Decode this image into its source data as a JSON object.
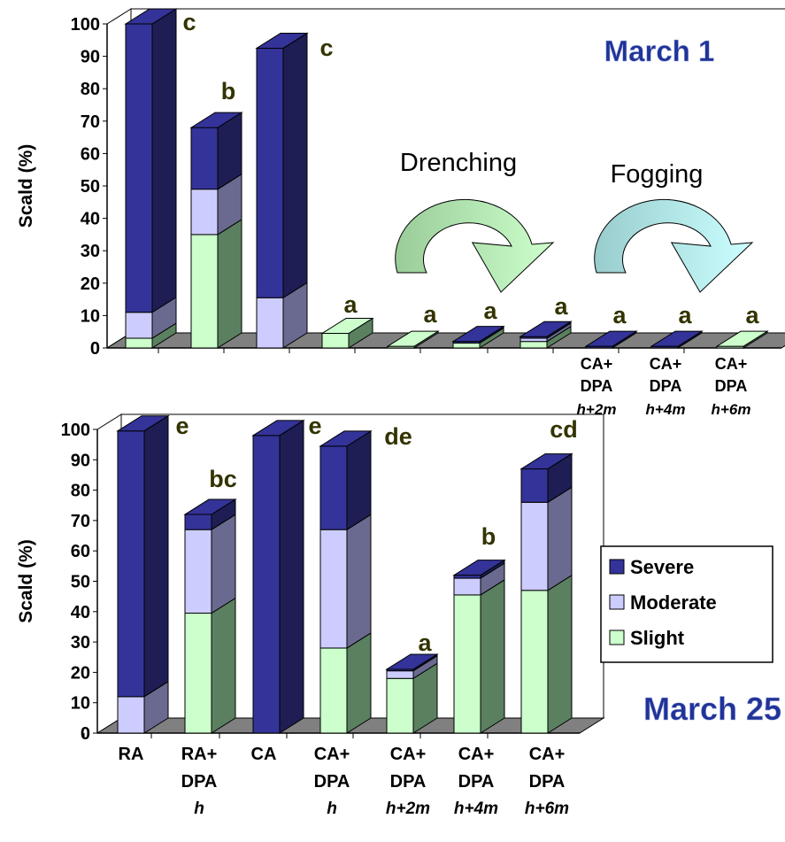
{
  "colors": {
    "severe": "#333399",
    "moderate": "#ccccff",
    "slight": "#ccffcc",
    "letter": "#333300",
    "title": "#1f3399",
    "drench_start": "#99cc99",
    "drench_end": "#ccffcc",
    "fog_start": "#99cccc",
    "fog_end": "#ccffff"
  },
  "chart_data": [
    {
      "type": "bar",
      "stacked": true,
      "three_d": true,
      "title": "March 1",
      "ylabel": "Scald (%)",
      "ylim": [
        0,
        100
      ],
      "yticks": [
        0,
        10,
        20,
        30,
        40,
        50,
        60,
        70,
        80,
        90,
        100
      ],
      "categories": [
        [
          "",
          "",
          ""
        ],
        [
          "",
          "",
          ""
        ],
        [
          "",
          "",
          ""
        ],
        [
          "",
          "",
          ""
        ],
        [
          "",
          "",
          ""
        ],
        [
          "",
          "",
          ""
        ],
        [
          "",
          "",
          ""
        ],
        [
          "CA+",
          "DPA",
          "h+2m"
        ],
        [
          "CA+",
          "DPA",
          "h+4m"
        ],
        [
          "CA+",
          "DPA",
          "h+6m"
        ]
      ],
      "series": [
        {
          "name": "Slight",
          "values": [
            3,
            35,
            0,
            4.5,
            0.5,
            1.5,
            2,
            0,
            0,
            0.5
          ]
        },
        {
          "name": "Moderate",
          "values": [
            8,
            14,
            15.5,
            0,
            0,
            0,
            1,
            0,
            0,
            0
          ]
        },
        {
          "name": "Severe",
          "values": [
            89,
            19,
            77,
            0,
            0,
            0.5,
            0.5,
            0.5,
            0.5,
            0
          ]
        }
      ],
      "letters": [
        "c",
        "b",
        "c",
        "a",
        "a",
        "a",
        "a",
        "a",
        "a",
        "a"
      ],
      "annotations": [
        {
          "label": "Drenching",
          "arrow": "drench"
        },
        {
          "label": "Fogging",
          "arrow": "fog"
        }
      ]
    },
    {
      "type": "bar",
      "stacked": true,
      "three_d": true,
      "title": "March 25",
      "ylabel": "Scald (%)",
      "ylim": [
        0,
        100
      ],
      "yticks": [
        0,
        10,
        20,
        30,
        40,
        50,
        60,
        70,
        80,
        90,
        100
      ],
      "categories": [
        [
          "RA",
          "",
          ""
        ],
        [
          "RA+",
          "DPA",
          "h"
        ],
        [
          "CA",
          "",
          ""
        ],
        [
          "CA+",
          "DPA",
          "h"
        ],
        [
          "CA+",
          "DPA",
          "h+2m"
        ],
        [
          "CA+",
          "DPA",
          "h+4m"
        ],
        [
          "CA+",
          "DPA",
          "h+6m"
        ]
      ],
      "series": [
        {
          "name": "Slight",
          "values": [
            0,
            39.5,
            0,
            28,
            18,
            45.5,
            47
          ]
        },
        {
          "name": "Moderate",
          "values": [
            12,
            27.5,
            0,
            39,
            2.5,
            5.5,
            29
          ]
        },
        {
          "name": "Severe",
          "values": [
            87.5,
            5,
            98,
            27.5,
            0.5,
            1,
            11
          ]
        }
      ],
      "letters": [
        "e",
        "bc",
        "",
        "e",
        "a",
        "b",
        "cd"
      ],
      "letter_de": "de",
      "legend": {
        "placement": "right",
        "entries": [
          "Severe",
          "Moderate",
          "Slight"
        ]
      }
    }
  ]
}
